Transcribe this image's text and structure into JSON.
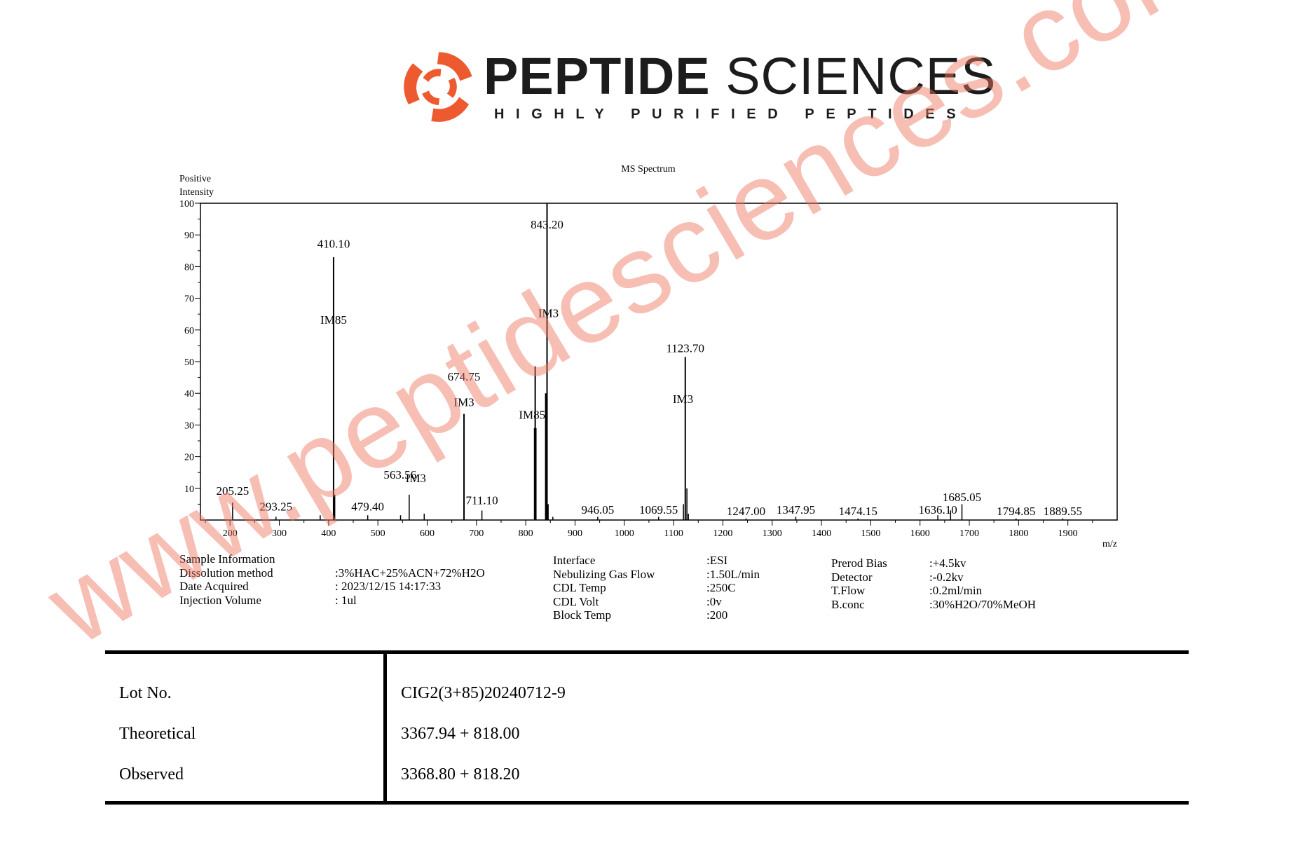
{
  "brand": {
    "name_bold": "PEPTIDE",
    "name_light": "SCIENCES",
    "tagline": "HIGHLY PURIFIED PEPTIDES",
    "logo_icon": "swirl-logo-icon",
    "accent_color": "#ee5a2f"
  },
  "chart_data": {
    "type": "bar",
    "title": "MS Spectrum",
    "ylabel": "Positive Intensity",
    "ylabel_line1": "Positive",
    "ylabel_line2": "Intensity",
    "xlabel": "m/z",
    "xlim": [
      140,
      2000
    ],
    "ylim": [
      0,
      100
    ],
    "x_ticks": [
      200,
      300,
      400,
      500,
      600,
      700,
      800,
      900,
      1000,
      1100,
      1200,
      1300,
      1400,
      1500,
      1600,
      1700,
      1800,
      1900
    ],
    "y_ticks": [
      10,
      20,
      30,
      40,
      50,
      60,
      70,
      80,
      90,
      100
    ],
    "peaks": [
      {
        "mz": 205.25,
        "intensity": 5.5
      },
      {
        "mz": 293.25,
        "intensity": 1.0
      },
      {
        "mz": 383.0,
        "intensity": 1.5
      },
      {
        "mz": 410.1,
        "intensity": 83
      },
      {
        "mz": 412.5,
        "intensity": 8
      },
      {
        "mz": 479.4,
        "intensity": 1.5
      },
      {
        "mz": 546.0,
        "intensity": 1.5
      },
      {
        "mz": 563.56,
        "intensity": 8
      },
      {
        "mz": 594.0,
        "intensity": 2
      },
      {
        "mz": 674.75,
        "intensity": 33.5
      },
      {
        "mz": 711.1,
        "intensity": 3
      },
      {
        "mz": 818.0,
        "intensity": 29
      },
      {
        "mz": 819.2,
        "intensity": 48.5
      },
      {
        "mz": 820.5,
        "intensity": 29
      },
      {
        "mz": 840.5,
        "intensity": 40
      },
      {
        "mz": 841.8,
        "intensity": 29
      },
      {
        "mz": 843.2,
        "intensity": 100
      },
      {
        "mz": 845.5,
        "intensity": 5
      },
      {
        "mz": 855.0,
        "intensity": 1
      },
      {
        "mz": 946.05,
        "intensity": 1
      },
      {
        "mz": 1069.55,
        "intensity": 1
      },
      {
        "mz": 1120.0,
        "intensity": 5
      },
      {
        "mz": 1123.7,
        "intensity": 51.5
      },
      {
        "mz": 1127.0,
        "intensity": 10
      },
      {
        "mz": 1130.0,
        "intensity": 2
      },
      {
        "mz": 1247.0,
        "intensity": 0.5
      },
      {
        "mz": 1347.95,
        "intensity": 1
      },
      {
        "mz": 1474.15,
        "intensity": 0.5
      },
      {
        "mz": 1636.1,
        "intensity": 1.5
      },
      {
        "mz": 1662.0,
        "intensity": 3
      },
      {
        "mz": 1685.05,
        "intensity": 5
      },
      {
        "mz": 1794.85,
        "intensity": 0.5
      },
      {
        "mz": 1889.55,
        "intensity": 0.5
      }
    ],
    "peak_labels": [
      {
        "text": "205.25",
        "mz": 205.25,
        "y": 8
      },
      {
        "text": "293.25",
        "mz": 293.25,
        "y": 3
      },
      {
        "text": "410.10",
        "mz": 410.1,
        "y": 86
      },
      {
        "text": "IM85",
        "mz": 410.1,
        "y": 62
      },
      {
        "text": "479.40",
        "mz": 479.4,
        "y": 3
      },
      {
        "text": "563.56",
        "mz": 545.0,
        "y": 13
      },
      {
        "text": "IM3",
        "mz": 577.0,
        "y": 12
      },
      {
        "text": "674.75",
        "mz": 674.75,
        "y": 44
      },
      {
        "text": "IM3",
        "mz": 674.75,
        "y": 36
      },
      {
        "text": "711.10",
        "mz": 711.1,
        "y": 5
      },
      {
        "text": "IM85",
        "mz": 813.0,
        "y": 32
      },
      {
        "text": "843.20",
        "mz": 843.2,
        "y": 92
      },
      {
        "text": "IM3",
        "mz": 846.0,
        "y": 64
      },
      {
        "text": "946.05",
        "mz": 946.05,
        "y": 2
      },
      {
        "text": "1069.55",
        "mz": 1069.55,
        "y": 2
      },
      {
        "text": "1123.70",
        "mz": 1123.7,
        "y": 53
      },
      {
        "text": "IM3",
        "mz": 1119.0,
        "y": 37
      },
      {
        "text": "1247.00",
        "mz": 1247.0,
        "y": 1.5
      },
      {
        "text": "1347.95",
        "mz": 1347.95,
        "y": 2
      },
      {
        "text": "1474.15",
        "mz": 1474.15,
        "y": 1.5
      },
      {
        "text": "1636.10",
        "mz": 1636.1,
        "y": 2
      },
      {
        "text": "1685.05",
        "mz": 1685.05,
        "y": 6
      },
      {
        "text": "1794.85",
        "mz": 1794.85,
        "y": 1.5
      },
      {
        "text": "1889.55",
        "mz": 1889.55,
        "y": 1.5
      }
    ]
  },
  "sample_info": [
    {
      "label": "Sample Information",
      "value": ""
    },
    {
      "label": "Dissolution method",
      "value": ":3%HAC+25%ACN+72%H2O"
    },
    {
      "label": "Date Acquired",
      "value": ": 2023/12/15 14:17:33"
    },
    {
      "label": "Injection Volume",
      "value": ": 1ul"
    }
  ],
  "interface_info": [
    {
      "label": "Interface",
      "value": ":ESI"
    },
    {
      "label": "Nebulizing Gas Flow",
      "value": ":1.50L/min"
    },
    {
      "label": "CDL Temp",
      "value": ":250C"
    },
    {
      "label": "CDL Volt",
      "value": ":0v"
    },
    {
      "label": "Block Temp",
      "value": ":200"
    }
  ],
  "detector_info": [
    {
      "label": "Prerod Bias",
      "value": ":+4.5kv"
    },
    {
      "label": "Detector",
      "value": ":-0.2kv"
    },
    {
      "label": "T.Flow",
      "value": ":0.2ml/min"
    },
    {
      "label": "B.conc",
      "value": ":30%H2O/70%MeOH"
    }
  ],
  "lot_table": {
    "rows": [
      {
        "label": "Lot No.",
        "value": "CIG2(3+85)20240712-9"
      },
      {
        "label": "Theoretical",
        "value": "3367.94 + 818.00"
      },
      {
        "label": "Observed",
        "value": "3368.80 + 818.20"
      }
    ]
  },
  "watermark": {
    "text": "www.peptidesciences.com",
    "color": "#ee7862"
  }
}
